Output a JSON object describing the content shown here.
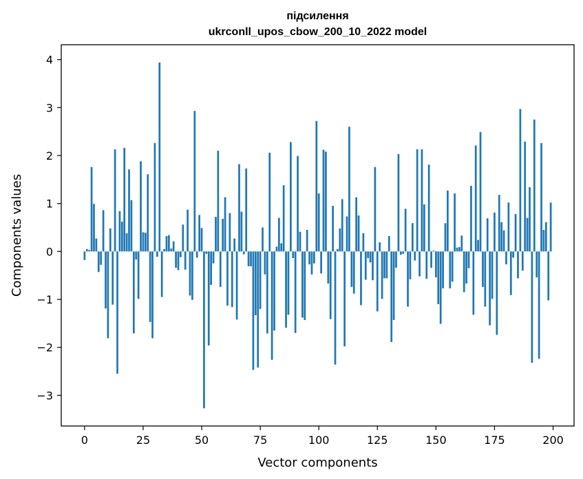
{
  "chart_data": {
    "type": "bar",
    "title_line1": "підсилення",
    "title_line2": "ukrconll_upos_cbow_200_10_2022 model",
    "xlabel": "Vector components",
    "ylabel": "Components values",
    "xlim": [
      -9.95,
      208.95
    ],
    "ylim": [
      -3.64,
      4.31
    ],
    "xticks": [
      0,
      25,
      50,
      75,
      100,
      125,
      150,
      175,
      200
    ],
    "yticks": [
      -3,
      -2,
      -1,
      0,
      1,
      2,
      3,
      4
    ],
    "bar_color": "#1f77b4",
    "grid": false,
    "values": [
      -0.18,
      0.05,
      0.03,
      1.76,
      0.99,
      0.27,
      -0.43,
      -0.28,
      0.86,
      -1.19,
      -1.81,
      0.48,
      -1.11,
      2.13,
      -2.55,
      0.84,
      0.62,
      2.16,
      0.38,
      1.71,
      1.07,
      -1.71,
      -0.17,
      -0.99,
      1.88,
      0.4,
      0.39,
      1.61,
      -1.47,
      -1.81,
      2.26,
      -0.11,
      3.94,
      -0.95,
      0.05,
      0.32,
      0.34,
      0.06,
      0.21,
      -0.34,
      -0.39,
      -0.12,
      0.56,
      -0.38,
      0.87,
      -0.92,
      -1.01,
      2.93,
      -0.13,
      0.76,
      0.49,
      -3.27,
      -0.05,
      -1.96,
      -0.7,
      -0.25,
      0.72,
      2.1,
      -0.74,
      0.68,
      1.13,
      -1.13,
      0.8,
      -1.16,
      0.27,
      -1.42,
      1.82,
      0.83,
      -0.06,
      1.73,
      -0.31,
      -0.31,
      -2.47,
      -1.33,
      -2.42,
      -1.2,
      0.5,
      -0.48,
      -1.71,
      2.06,
      -2.26,
      -1.65,
      0.1,
      0.7,
      0.17,
      1.38,
      -1.59,
      -1.32,
      2.28,
      -0.14,
      -1.7,
      1.99,
      0.41,
      -1.38,
      -1.43,
      0.45,
      -0.27,
      -0.48,
      -0.25,
      2.72,
      1.21,
      -0.46,
      2.12,
      2.08,
      -0.67,
      -1.41,
      0.95,
      -2.36,
      0.05,
      0.48,
      1.09,
      -1.98,
      0.73,
      2.6,
      -0.74,
      -0.88,
      1.13,
      0.75,
      -1.12,
      0.38,
      -0.59,
      -0.14,
      -0.23,
      -0.6,
      1.76,
      -1.25,
      0.19,
      -0.99,
      -0.56,
      -0.56,
      0.32,
      -1.89,
      -1.43,
      -0.34,
      2.03,
      -0.07,
      -0.05,
      0.89,
      -1.15,
      -0.58,
      0.59,
      -0.19,
      2.13,
      -0.52,
      2.13,
      0.98,
      -0.57,
      1.81,
      -0.34,
      0.02,
      -0.54,
      -1.1,
      -1.51,
      -0.77,
      0.59,
      1.27,
      -0.77,
      -0.63,
      1.21,
      0.08,
      0.09,
      0.33,
      -0.85,
      -0.67,
      -0.35,
      1.37,
      -1.32,
      2.21,
      0.24,
      2.49,
      -0.74,
      -1.15,
      0.69,
      -1.54,
      -0.99,
      0.81,
      -1.74,
      1.18,
      0.61,
      0.44,
      -0.27,
      1.02,
      -0.91,
      -0.13,
      0.78,
      -0.56,
      2.97,
      -0.4,
      2.29,
      0.7,
      1.34,
      -2.32,
      2.75,
      -0.54,
      -2.24,
      2.26,
      0.45,
      0.61,
      -1.02,
      1.02
    ]
  }
}
